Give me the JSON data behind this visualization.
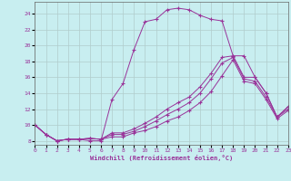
{
  "xlabel": "Windchill (Refroidissement éolien,°C)",
  "background_color": "#c8eef0",
  "line_color": "#993399",
  "grid_color": "#b0cccc",
  "xlim": [
    0,
    23
  ],
  "ylim": [
    7.5,
    25.5
  ],
  "xticks": [
    0,
    1,
    2,
    3,
    4,
    5,
    6,
    7,
    8,
    9,
    10,
    11,
    12,
    13,
    14,
    15,
    16,
    17,
    18,
    19,
    20,
    21,
    22,
    23
  ],
  "yticks": [
    8,
    10,
    12,
    14,
    16,
    18,
    20,
    22,
    24
  ],
  "curves": [
    {
      "x": [
        0,
        1,
        2,
        3,
        4,
        5,
        6,
        7,
        8,
        9,
        10,
        11,
        12,
        13,
        14,
        15,
        16,
        17,
        18,
        19,
        20,
        21,
        22,
        23
      ],
      "y": [
        10.0,
        8.8,
        8.0,
        8.2,
        8.2,
        8.0,
        8.0,
        13.2,
        15.2,
        19.5,
        23.0,
        23.3,
        24.5,
        24.7,
        24.5,
        23.8,
        23.3,
        23.1,
        18.7,
        18.7,
        16.0,
        14.0,
        11.0,
        12.3
      ]
    },
    {
      "x": [
        0,
        1,
        2,
        3,
        4,
        5,
        6,
        7,
        8,
        9,
        10,
        11,
        12,
        13,
        14,
        15,
        16,
        17,
        18,
        19,
        20,
        21,
        22,
        23
      ],
      "y": [
        10.0,
        8.8,
        8.0,
        8.2,
        8.2,
        8.3,
        8.2,
        9.0,
        9.0,
        9.5,
        10.2,
        11.0,
        12.0,
        12.8,
        13.5,
        14.8,
        16.5,
        18.5,
        18.7,
        16.0,
        16.0,
        14.0,
        11.0,
        12.3
      ]
    },
    {
      "x": [
        0,
        1,
        2,
        3,
        4,
        5,
        6,
        7,
        8,
        9,
        10,
        11,
        12,
        13,
        14,
        15,
        16,
        17,
        18,
        19,
        20,
        21,
        22,
        23
      ],
      "y": [
        10.0,
        8.8,
        8.0,
        8.2,
        8.2,
        8.3,
        8.2,
        8.8,
        8.8,
        9.2,
        9.8,
        10.5,
        11.3,
        12.0,
        12.8,
        14.0,
        15.8,
        17.8,
        18.5,
        15.8,
        15.5,
        13.5,
        11.0,
        12.0
      ]
    },
    {
      "x": [
        0,
        1,
        2,
        3,
        4,
        5,
        6,
        7,
        8,
        9,
        10,
        11,
        12,
        13,
        14,
        15,
        16,
        17,
        18,
        19,
        20,
        21,
        22,
        23
      ],
      "y": [
        10.0,
        8.8,
        8.0,
        8.2,
        8.2,
        8.3,
        8.2,
        8.5,
        8.5,
        9.0,
        9.3,
        9.8,
        10.5,
        11.0,
        11.8,
        12.8,
        14.2,
        16.2,
        18.2,
        15.5,
        15.2,
        13.2,
        10.8,
        11.8
      ]
    }
  ]
}
